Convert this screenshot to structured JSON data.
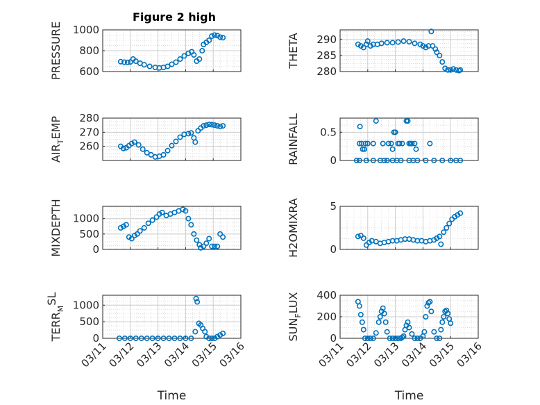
{
  "figure": {
    "title": "Figure 2 high",
    "marker_color": "#0072BD",
    "grid_color": "#dedede",
    "axis_color": "#262626"
  },
  "chart_data": [
    {
      "id": "pressure",
      "type": "scatter",
      "title": "Figure 2 high",
      "ylabel": "PRESSURE",
      "xlabel": "",
      "xlim": [
        "03/11",
        "03/16"
      ],
      "ylim": [
        600,
        1000
      ],
      "yticks": [
        "600",
        "800",
        "1000"
      ],
      "xticklabels": [],
      "grid": "on",
      "minor_grid": "on",
      "series": [
        {
          "x": [
            11.65,
            11.78,
            11.9,
            12.0,
            12.1,
            12.2,
            12.35,
            12.5,
            12.7,
            12.9,
            13.05,
            13.2,
            13.35,
            13.5,
            13.65,
            13.8,
            13.95,
            14.1,
            14.22,
            14.3,
            14.4,
            14.5,
            14.6,
            14.65,
            14.75,
            14.85,
            14.95,
            15.05,
            15.15,
            15.25,
            15.35
          ],
          "y": [
            695,
            690,
            688,
            692,
            720,
            700,
            680,
            665,
            650,
            640,
            635,
            640,
            650,
            670,
            690,
            720,
            750,
            775,
            790,
            760,
            700,
            720,
            800,
            860,
            880,
            900,
            940,
            950,
            945,
            930,
            925
          ]
        }
      ]
    },
    {
      "id": "theta",
      "type": "scatter",
      "title": "",
      "ylabel": "THETA",
      "xlabel": "",
      "xlim": [
        "03/11",
        "03/16"
      ],
      "ylim": [
        280,
        293
      ],
      "yticks": [
        "280",
        "285",
        "290"
      ],
      "xticklabels": [],
      "grid": "on",
      "minor_grid": "on",
      "series": [
        {
          "x": [
            11.65,
            11.75,
            11.85,
            11.95,
            12.0,
            12.1,
            12.2,
            12.35,
            12.5,
            12.7,
            12.9,
            13.1,
            13.3,
            13.5,
            13.7,
            13.9,
            14.0,
            14.1,
            14.2,
            14.3,
            14.35,
            14.45,
            14.5,
            14.6,
            14.7,
            14.8,
            14.9,
            15.0,
            15.1,
            15.2,
            15.3,
            15.35
          ],
          "y": [
            288.5,
            288,
            287.5,
            288.5,
            289.5,
            288,
            288.5,
            288.5,
            288.8,
            289,
            289,
            289.2,
            289.5,
            289.3,
            288.8,
            288.5,
            288,
            287.5,
            288,
            292.5,
            288,
            287,
            286,
            285,
            283,
            281,
            280.5,
            280.5,
            280.8,
            280.5,
            280.3,
            280.5
          ]
        }
      ]
    },
    {
      "id": "air_temp",
      "type": "scatter",
      "title": "",
      "ylabel": "AIR",
      "ylabel_sub": "T",
      "ylabel_rest": "EMP",
      "xlabel": "",
      "xlim": [
        "03/11",
        "03/16"
      ],
      "ylim": [
        250,
        280
      ],
      "yticks": [
        "260",
        "270",
        "280"
      ],
      "xticklabels": [],
      "grid": "on",
      "minor_grid": "on",
      "series": [
        {
          "x": [
            11.65,
            11.75,
            11.85,
            11.95,
            12.05,
            12.15,
            12.3,
            12.45,
            12.6,
            12.75,
            12.9,
            13.05,
            13.2,
            13.35,
            13.5,
            13.65,
            13.8,
            13.95,
            14.1,
            14.2,
            14.3,
            14.35,
            14.45,
            14.55,
            14.65,
            14.75,
            14.85,
            14.95,
            15.05,
            15.15,
            15.25,
            15.35
          ],
          "y": [
            260,
            258.5,
            259,
            260.5,
            262,
            263,
            261,
            258,
            255.5,
            254,
            252.5,
            253,
            254,
            257,
            260.5,
            263.5,
            266.5,
            268.5,
            269,
            269.5,
            266,
            263,
            271,
            273,
            274.5,
            275,
            275.5,
            275.3,
            275,
            274.5,
            274,
            274.5
          ]
        }
      ]
    },
    {
      "id": "rainfall",
      "type": "scatter",
      "title": "",
      "ylabel": "RAINFALL",
      "xlabel": "",
      "xlim": [
        "03/11",
        "03/16"
      ],
      "ylim": [
        0,
        0.75
      ],
      "yticks": [
        "0",
        "0.5"
      ],
      "xticklabels": [],
      "grid": "on",
      "minor_grid": "on",
      "series": [
        {
          "x": [
            11.6,
            11.7,
            11.72,
            11.78,
            11.82,
            11.88,
            11.92,
            12.0,
            12.2,
            12.3,
            12.45,
            12.55,
            12.7,
            12.75,
            12.85,
            12.9,
            12.95,
            13.0,
            13.05,
            13.1,
            13.15,
            13.25,
            13.4,
            13.45,
            13.5,
            13.55,
            13.6,
            13.65,
            13.7,
            13.75,
            14.25,
            11.7,
            11.95,
            12.2,
            12.6,
            12.9,
            13.2,
            13.5,
            13.8,
            14.1,
            14.4,
            14.7,
            15.0,
            15.2,
            15.35
          ],
          "y": [
            0,
            0.3,
            0.6,
            0.3,
            0.2,
            0.2,
            0.3,
            0.3,
            0.3,
            0.7,
            0,
            0.3,
            0,
            0.3,
            0.3,
            0.2,
            0.5,
            0.5,
            0,
            0.3,
            0.3,
            0.3,
            0.7,
            0.7,
            0.3,
            0.3,
            0.3,
            0,
            0.3,
            0.2,
            0.3,
            0,
            0,
            0,
            0,
            0,
            0,
            0,
            0,
            0,
            0,
            0,
            0,
            0,
            0
          ]
        }
      ]
    },
    {
      "id": "mixdepth",
      "type": "scatter",
      "title": "",
      "ylabel": "MIXDEPTH",
      "xlabel": "",
      "xlim": [
        "03/11",
        "03/16"
      ],
      "ylim": [
        0,
        1400
      ],
      "yticks": [
        "0",
        "500",
        "1000"
      ],
      "xticklabels": [],
      "grid": "on",
      "minor_grid": "on",
      "series": [
        {
          "x": [
            11.65,
            11.75,
            11.85,
            11.95,
            12.05,
            12.15,
            12.25,
            12.35,
            12.5,
            12.65,
            12.8,
            12.95,
            13.05,
            13.15,
            13.3,
            13.45,
            13.6,
            13.75,
            13.9,
            14.0,
            14.1,
            14.2,
            14.3,
            14.4,
            14.5,
            14.55,
            14.65,
            14.75,
            14.85,
            14.95,
            15.05,
            15.15,
            15.25,
            15.35
          ],
          "y": [
            700,
            750,
            800,
            400,
            350,
            450,
            500,
            600,
            700,
            850,
            950,
            1050,
            1150,
            1200,
            1100,
            1150,
            1200,
            1250,
            1300,
            1250,
            1000,
            800,
            500,
            300,
            150,
            50,
            100,
            200,
            350,
            100,
            100,
            100,
            500,
            400
          ]
        }
      ]
    },
    {
      "id": "h2omixra",
      "type": "scatter",
      "title": "",
      "ylabel": "H2OMIXRA",
      "xlabel": "",
      "xlim": [
        "03/11",
        "03/16"
      ],
      "ylim": [
        0,
        5
      ],
      "yticks": [
        "0",
        "5"
      ],
      "xticklabels": [],
      "grid": "on",
      "minor_grid": "on",
      "series": [
        {
          "x": [
            11.65,
            11.75,
            11.85,
            11.95,
            12.05,
            12.15,
            12.3,
            12.45,
            12.6,
            12.75,
            12.9,
            13.05,
            13.2,
            13.35,
            13.5,
            13.65,
            13.8,
            13.95,
            14.1,
            14.25,
            14.4,
            14.5,
            14.6,
            14.65,
            14.75,
            14.85,
            14.95,
            15.05,
            15.15,
            15.25,
            15.35
          ],
          "y": [
            1.5,
            1.6,
            1.3,
            0.5,
            0.8,
            1.0,
            0.9,
            0.7,
            0.8,
            0.9,
            1.0,
            1.0,
            1.1,
            1.2,
            1.2,
            1.1,
            1.0,
            1.0,
            0.9,
            1.0,
            1.1,
            1.3,
            1.5,
            0.6,
            2.0,
            2.5,
            3.0,
            3.5,
            3.8,
            4.0,
            4.2
          ]
        }
      ]
    },
    {
      "id": "terr_msl",
      "type": "scatter",
      "title": "",
      "ylabel": "TERR",
      "ylabel_sub": "M",
      "ylabel_sup": "SL",
      "xlabel": "Time",
      "xlim": [
        "03/11",
        "03/16"
      ],
      "ylim": [
        0,
        1300
      ],
      "yticks": [
        "0",
        "500",
        "1000"
      ],
      "xticklabels": [
        "03/11",
        "03/12",
        "03/13",
        "03/14",
        "03/15",
        "03/16"
      ],
      "grid": "on",
      "minor_grid": "on",
      "series": [
        {
          "x": [
            11.6,
            11.8,
            12.0,
            12.2,
            12.4,
            12.6,
            12.8,
            13.0,
            13.2,
            13.4,
            13.6,
            13.8,
            14.0,
            14.2,
            14.35,
            14.38,
            14.42,
            14.48,
            14.55,
            14.62,
            14.7,
            14.75,
            14.85,
            14.95,
            15.05,
            15.15,
            15.25,
            15.35
          ],
          "y": [
            0,
            0,
            0,
            0,
            0,
            0,
            0,
            0,
            0,
            0,
            0,
            0,
            0,
            0,
            200,
            1200,
            1100,
            450,
            400,
            300,
            200,
            50,
            0,
            0,
            0,
            50,
            100,
            150
          ]
        }
      ]
    },
    {
      "id": "sun_flux",
      "type": "scatter",
      "title": "",
      "ylabel": "SUN",
      "ylabel_sub": "F",
      "ylabel_rest": "LUX",
      "xlabel": "Time",
      "xlim": [
        "03/11",
        "03/16"
      ],
      "ylim": [
        0,
        400
      ],
      "yticks": [
        "0",
        "200",
        "400"
      ],
      "xticklabels": [
        "03/11",
        "03/12",
        "03/13",
        "03/14",
        "03/15",
        "03/16"
      ],
      "grid": "on",
      "minor_grid": "on",
      "series": [
        {
          "x": [
            11.65,
            11.7,
            11.75,
            11.8,
            11.85,
            11.9,
            12.0,
            12.1,
            12.2,
            12.3,
            12.4,
            12.45,
            12.5,
            12.55,
            12.6,
            12.65,
            12.7,
            12.8,
            12.9,
            13.0,
            13.1,
            13.2,
            13.25,
            13.3,
            13.35,
            13.4,
            13.45,
            13.5,
            13.6,
            13.7,
            13.8,
            13.9,
            14.0,
            14.05,
            14.1,
            14.15,
            14.2,
            14.25,
            14.3,
            14.4,
            14.5,
            14.6,
            14.65,
            14.7,
            14.75,
            14.8,
            14.85,
            14.9,
            14.95,
            15.0
          ],
          "y": [
            340,
            300,
            220,
            150,
            80,
            0,
            0,
            0,
            0,
            50,
            150,
            200,
            250,
            280,
            230,
            150,
            60,
            0,
            0,
            0,
            0,
            0,
            10,
            20,
            80,
            120,
            150,
            100,
            40,
            0,
            0,
            0,
            20,
            60,
            200,
            300,
            330,
            340,
            250,
            60,
            0,
            0,
            80,
            150,
            200,
            250,
            260,
            230,
            180,
            140
          ]
        }
      ]
    }
  ]
}
